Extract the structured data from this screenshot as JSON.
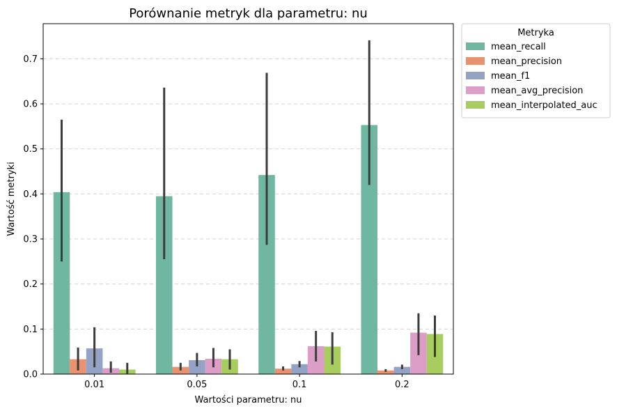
{
  "chart_data": {
    "type": "bar",
    "title": "Porównanie metryk dla parametru: nu",
    "xlabel": "Wartości parametru: nu",
    "ylabel": "Wartość metryki",
    "categories": [
      "0.01",
      "0.05",
      "0.1",
      "0.2"
    ],
    "ylim": [
      0,
      0.778
    ],
    "yticks": [
      "0.0",
      "0.1",
      "0.2",
      "0.3",
      "0.4",
      "0.5",
      "0.6",
      "0.7"
    ],
    "grid": "horizontal dashed",
    "legend_position": "outside right, top",
    "legend_title": "Metryka",
    "series": [
      {
        "name": "mean_recall",
        "color": "#6fb7a0",
        "values": [
          0.404,
          0.395,
          0.442,
          0.553
        ],
        "err_low": [
          0.25,
          0.255,
          0.287,
          0.42
        ],
        "err_high": [
          0.565,
          0.636,
          0.669,
          0.741
        ]
      },
      {
        "name": "mean_precision",
        "color": "#ea9170",
        "values": [
          0.033,
          0.016,
          0.012,
          0.008
        ],
        "err_low": [
          0.008,
          0.008,
          0.008,
          0.005
        ],
        "err_high": [
          0.059,
          0.025,
          0.017,
          0.011
        ]
      },
      {
        "name": "mean_f1",
        "color": "#94a3c5",
        "values": [
          0.057,
          0.031,
          0.022,
          0.016
        ],
        "err_low": [
          0.015,
          0.017,
          0.015,
          0.011
        ],
        "err_high": [
          0.104,
          0.047,
          0.029,
          0.021
        ]
      },
      {
        "name": "mean_avg_precision",
        "color": "#dc9dc7",
        "values": [
          0.013,
          0.034,
          0.062,
          0.092
        ],
        "err_low": [
          0.003,
          0.015,
          0.028,
          0.042
        ],
        "err_high": [
          0.028,
          0.058,
          0.096,
          0.135
        ]
      },
      {
        "name": "mean_interpolated_auc",
        "color": "#a6cd5e",
        "values": [
          0.01,
          0.033,
          0.061,
          0.089
        ],
        "err_low": [
          0.001,
          0.01,
          0.021,
          0.038
        ],
        "err_high": [
          0.025,
          0.055,
          0.093,
          0.13
        ]
      }
    ]
  }
}
